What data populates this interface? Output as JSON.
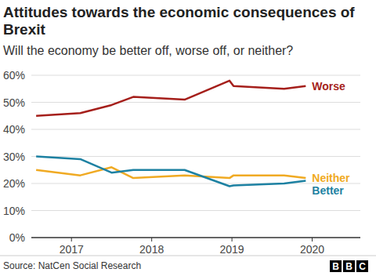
{
  "chart_data": {
    "type": "line",
    "title": "Attitudes towards the economic consequences of Brexit",
    "subtitle": "Will the economy be better off, worse off, or neither?",
    "source": "Source: NatCen Social Research",
    "logo": "BBC",
    "x": [
      2016.56,
      2017.11,
      2017.5,
      2017.77,
      2018.41,
      2018.97,
      2019.02,
      2019.65,
      2019.92
    ],
    "series": [
      {
        "name": "Worse",
        "color": "#a51f1b",
        "values": [
          45,
          46,
          49,
          52,
          51,
          58,
          56,
          55,
          56
        ]
      },
      {
        "name": "Neither",
        "color": "#f0aa23",
        "values": [
          25,
          23,
          26,
          22,
          23,
          22,
          23,
          23,
          22
        ]
      },
      {
        "name": "Better",
        "color": "#1d81a2",
        "values": [
          30,
          29,
          24,
          25,
          25,
          19,
          19.3,
          20,
          21
        ]
      }
    ],
    "xlim": [
      2016.5,
      2020.6
    ],
    "xticks": [
      2017,
      2018,
      2019,
      2020
    ],
    "ylim": [
      0,
      60
    ],
    "yticks": [
      {
        "value": 0,
        "label": "0%"
      },
      {
        "value": 10,
        "label": "10%"
      },
      {
        "value": 20,
        "label": "20%"
      },
      {
        "value": 30,
        "label": "30%"
      },
      {
        "value": 40,
        "label": "40%"
      },
      {
        "value": 50,
        "label": "50%"
      },
      {
        "value": 60,
        "label": "60%"
      }
    ],
    "grid": true
  }
}
